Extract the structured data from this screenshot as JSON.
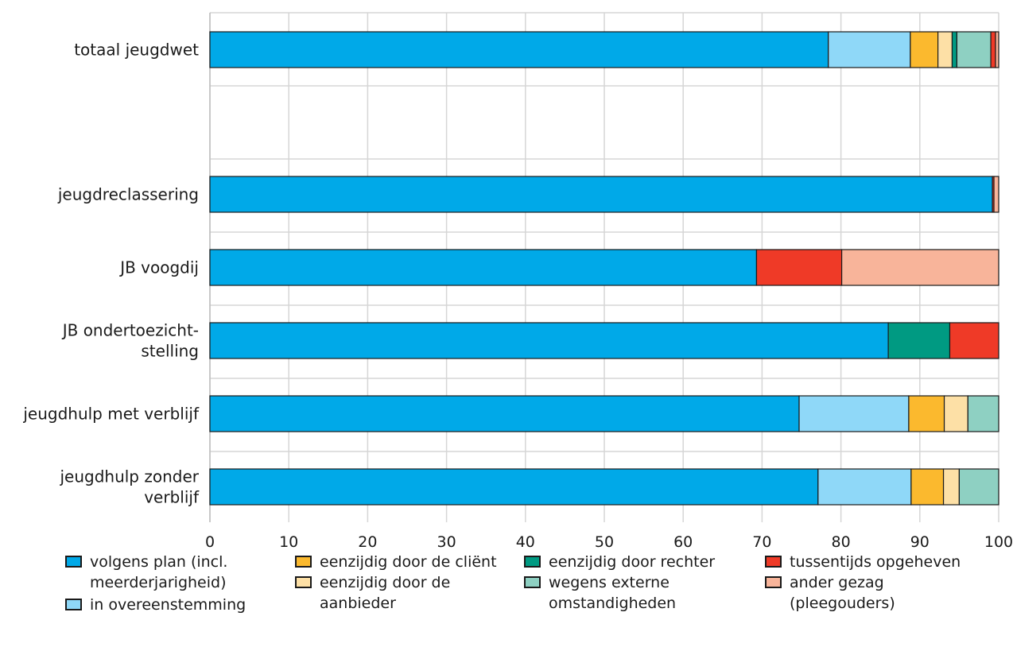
{
  "chart_data": {
    "type": "bar",
    "orientation": "horizontal",
    "stacked": true,
    "title": "",
    "xlabel": "",
    "ylabel": "",
    "xlim": [
      0,
      100
    ],
    "x_ticks": [
      0,
      10,
      20,
      30,
      40,
      50,
      60,
      70,
      80,
      90,
      100
    ],
    "x_tick_labels": [
      "0",
      "10",
      "20",
      "30",
      "40",
      "50",
      "60",
      "70",
      "80",
      "90",
      "100"
    ],
    "grid": true,
    "legend_position": "bottom",
    "categories": [
      "totaal jeugdwet",
      "",
      "jeugdreclassering",
      "JB voogdij",
      "JB ondertoezicht-\nstelling",
      "jeugdhulp met verblijf",
      "jeugdhulp zonder\nverblijf"
    ],
    "series": [
      {
        "name": "volgens plan (incl.\nmeerderjarigheid)",
        "color": "#00a9e8",
        "values": [
          78.4,
          null,
          99.2,
          69.3,
          86.0,
          74.7,
          77.1
        ]
      },
      {
        "name": "in overeenstemming",
        "color": "#8fd8f8",
        "values": [
          10.4,
          null,
          0,
          0,
          0,
          13.9,
          11.8
        ]
      },
      {
        "name": "eenzijdig door de cliënt",
        "color": "#fbb92e",
        "values": [
          3.5,
          null,
          0,
          0,
          0,
          4.5,
          4.1
        ]
      },
      {
        "name": "eenzijdig door de\naanbieder",
        "color": "#fde0a6",
        "values": [
          1.8,
          null,
          0,
          0,
          0,
          3.0,
          2.0
        ]
      },
      {
        "name": "eenzijdig door rechter",
        "color": "#009a82",
        "values": [
          0.6,
          null,
          0,
          0,
          7.8,
          0,
          0
        ]
      },
      {
        "name": "wegens externe\nomstandigheden",
        "color": "#8ed0c2",
        "values": [
          4.3,
          null,
          0,
          0,
          0,
          3.9,
          5.0
        ]
      },
      {
        "name": "tussentijds opgeheven",
        "color": "#ef3a27",
        "values": [
          0.6,
          null,
          0.2,
          10.8,
          6.2,
          0,
          0
        ]
      },
      {
        "name": "ander gezag\n(pleegouders)",
        "color": "#f8b49a",
        "values": [
          0.4,
          null,
          0.6,
          19.9,
          0,
          0,
          0
        ]
      }
    ]
  }
}
